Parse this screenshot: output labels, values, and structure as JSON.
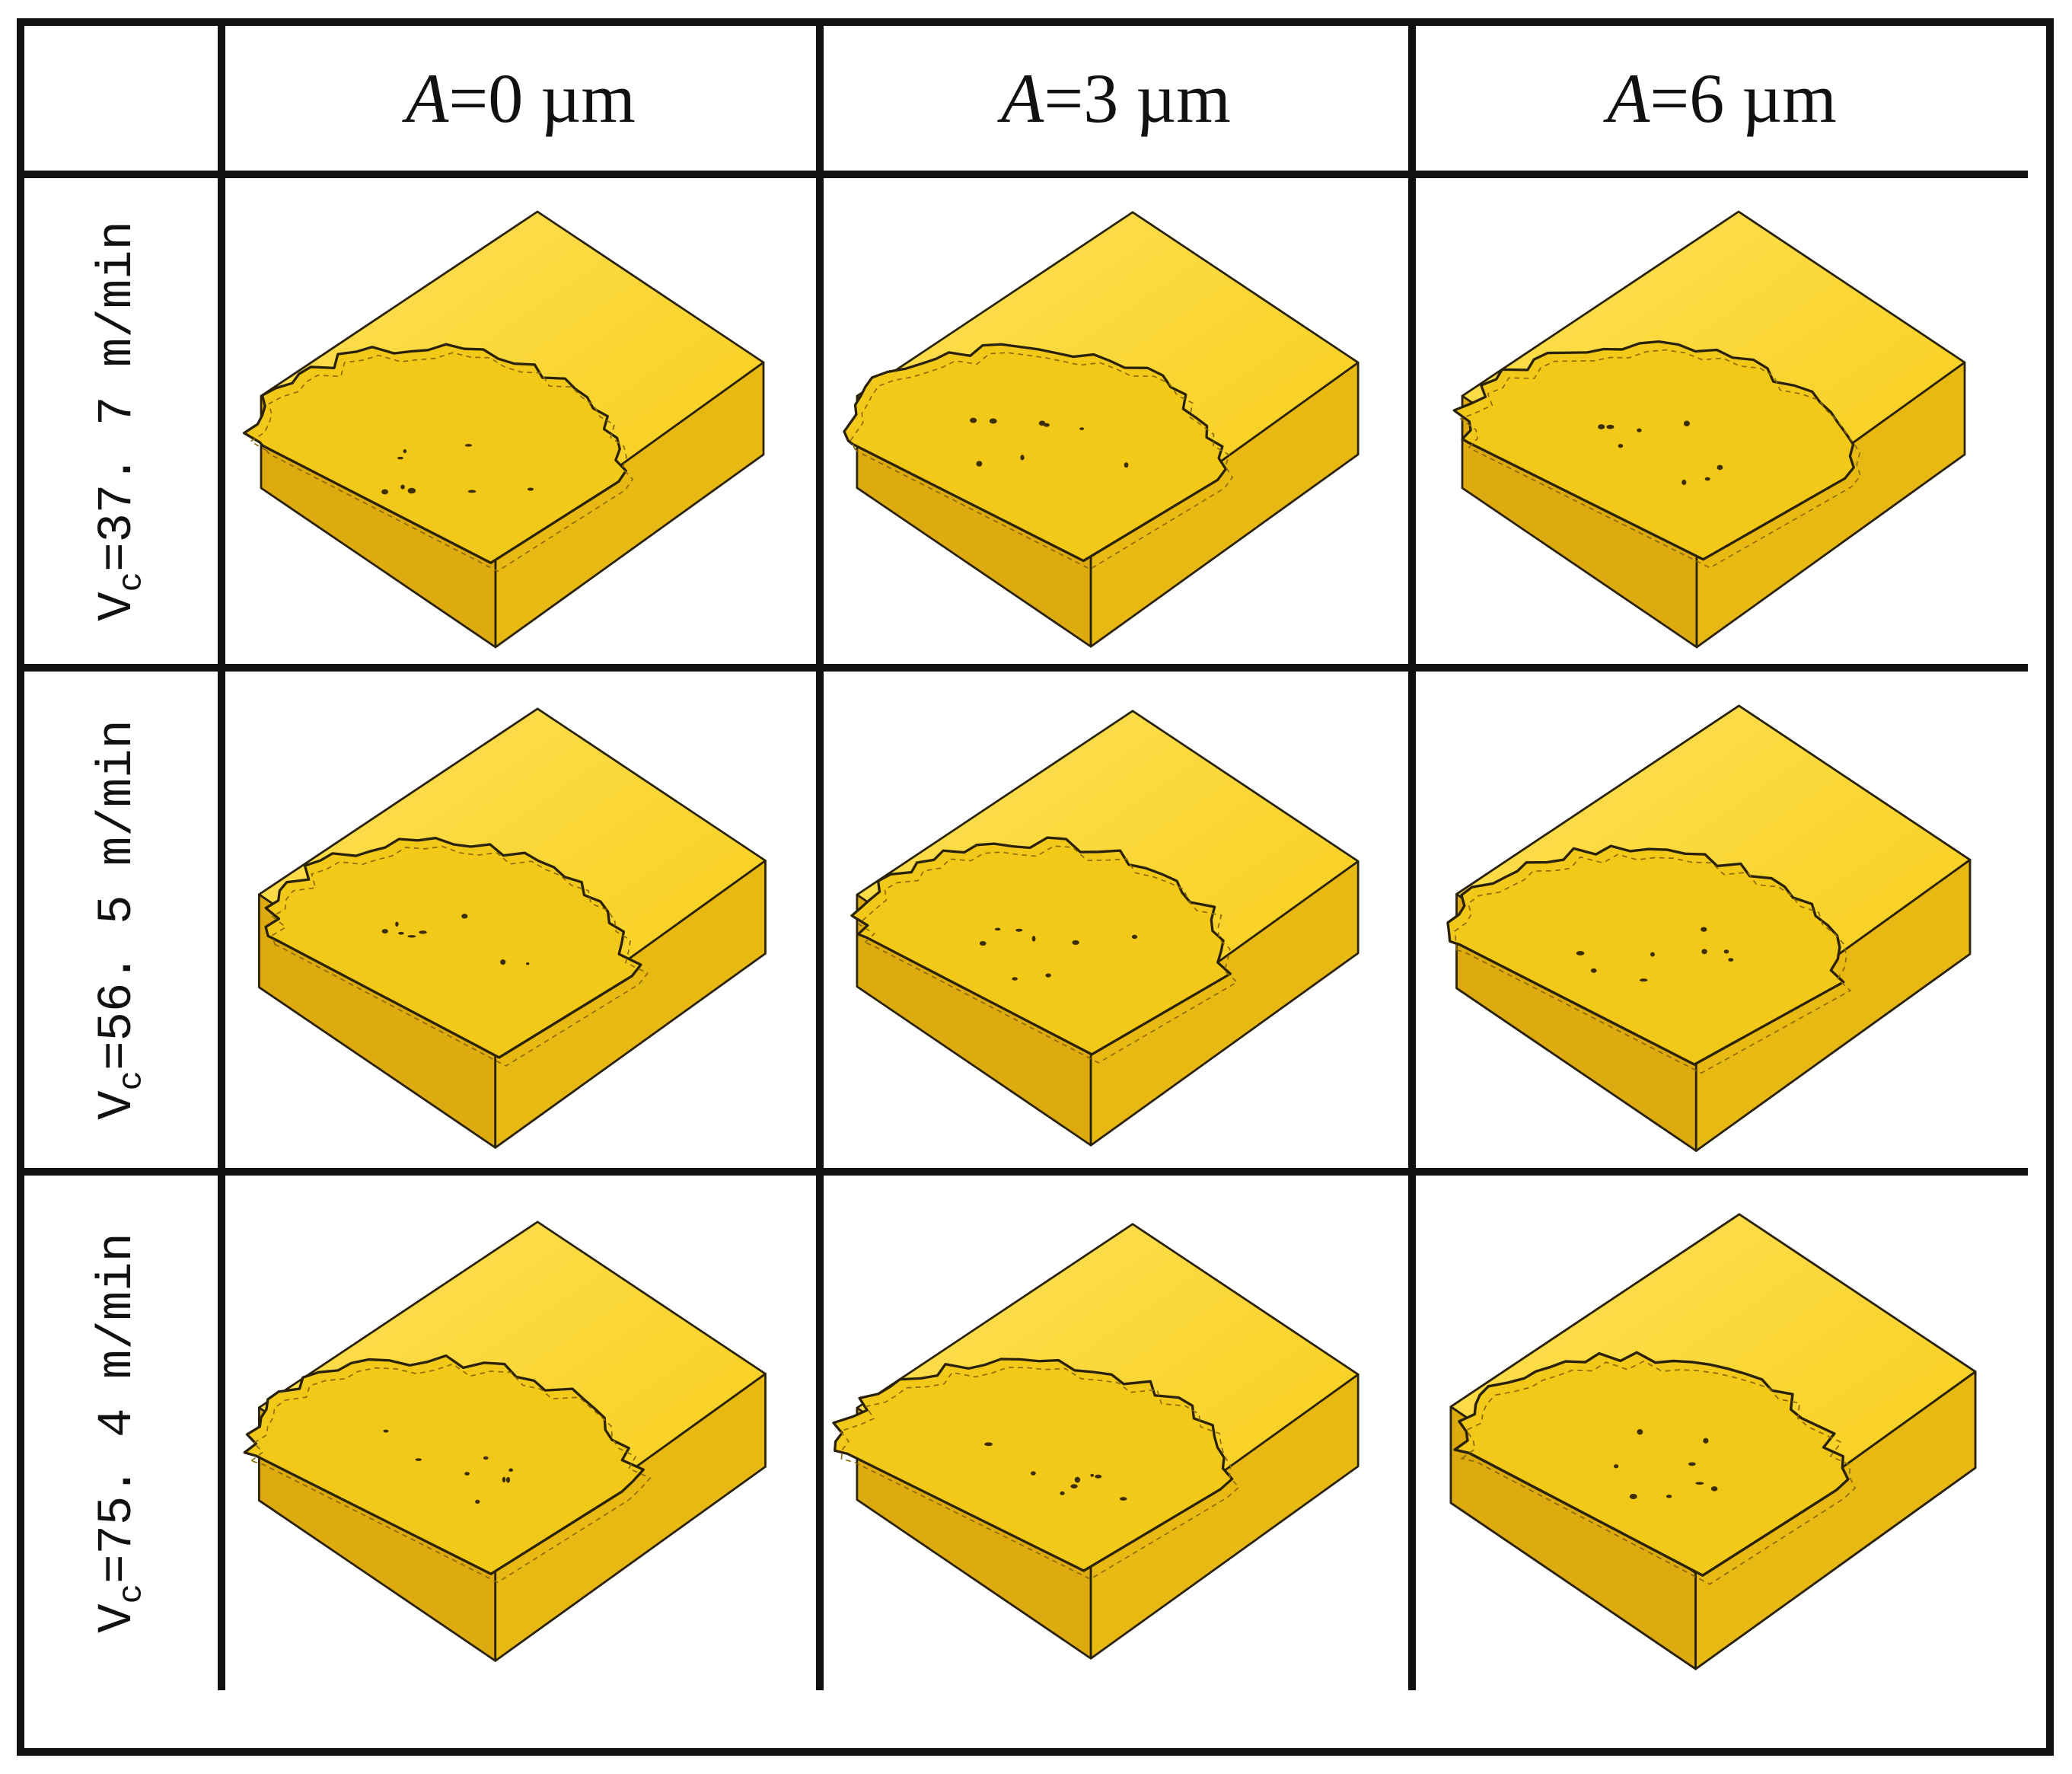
{
  "colors": {
    "top_face": "#F6CC14",
    "top_face_light": "#FFE25A",
    "left_face": "#DDAA10",
    "front_face": "#E8B912",
    "crater_floor": "#F3C919",
    "outline": "#2a2208",
    "grid_border": "#111111"
  },
  "table": {
    "columns": [
      {
        "var": "A",
        "rest": "=0 µm"
      },
      {
        "var": "A",
        "rest": "=3 µm"
      },
      {
        "var": "A",
        "rest": "=6 µm"
      }
    ],
    "rows": [
      {
        "prefix": "V",
        "sub": "c",
        "rest": "=37. 7 m/min"
      },
      {
        "prefix": "V",
        "sub": "c",
        "rest": "=56. 5 m/min"
      },
      {
        "prefix": "V",
        "sub": "c",
        "rest": "=75. 4 m/min"
      }
    ]
  },
  "specimens": [
    {
      "row": 0,
      "col": 0,
      "icon": "rake-face-crater"
    },
    {
      "row": 0,
      "col": 1,
      "icon": "rake-face-crater"
    },
    {
      "row": 0,
      "col": 2,
      "icon": "rake-face-crater"
    },
    {
      "row": 1,
      "col": 0,
      "icon": "rake-face-crater"
    },
    {
      "row": 1,
      "col": 1,
      "icon": "rake-face-crater"
    },
    {
      "row": 1,
      "col": 2,
      "icon": "rake-face-crater"
    },
    {
      "row": 2,
      "col": 0,
      "icon": "rake-face-crater"
    },
    {
      "row": 2,
      "col": 1,
      "icon": "rake-face-crater"
    },
    {
      "row": 2,
      "col": 2,
      "icon": "rake-face-crater"
    }
  ]
}
